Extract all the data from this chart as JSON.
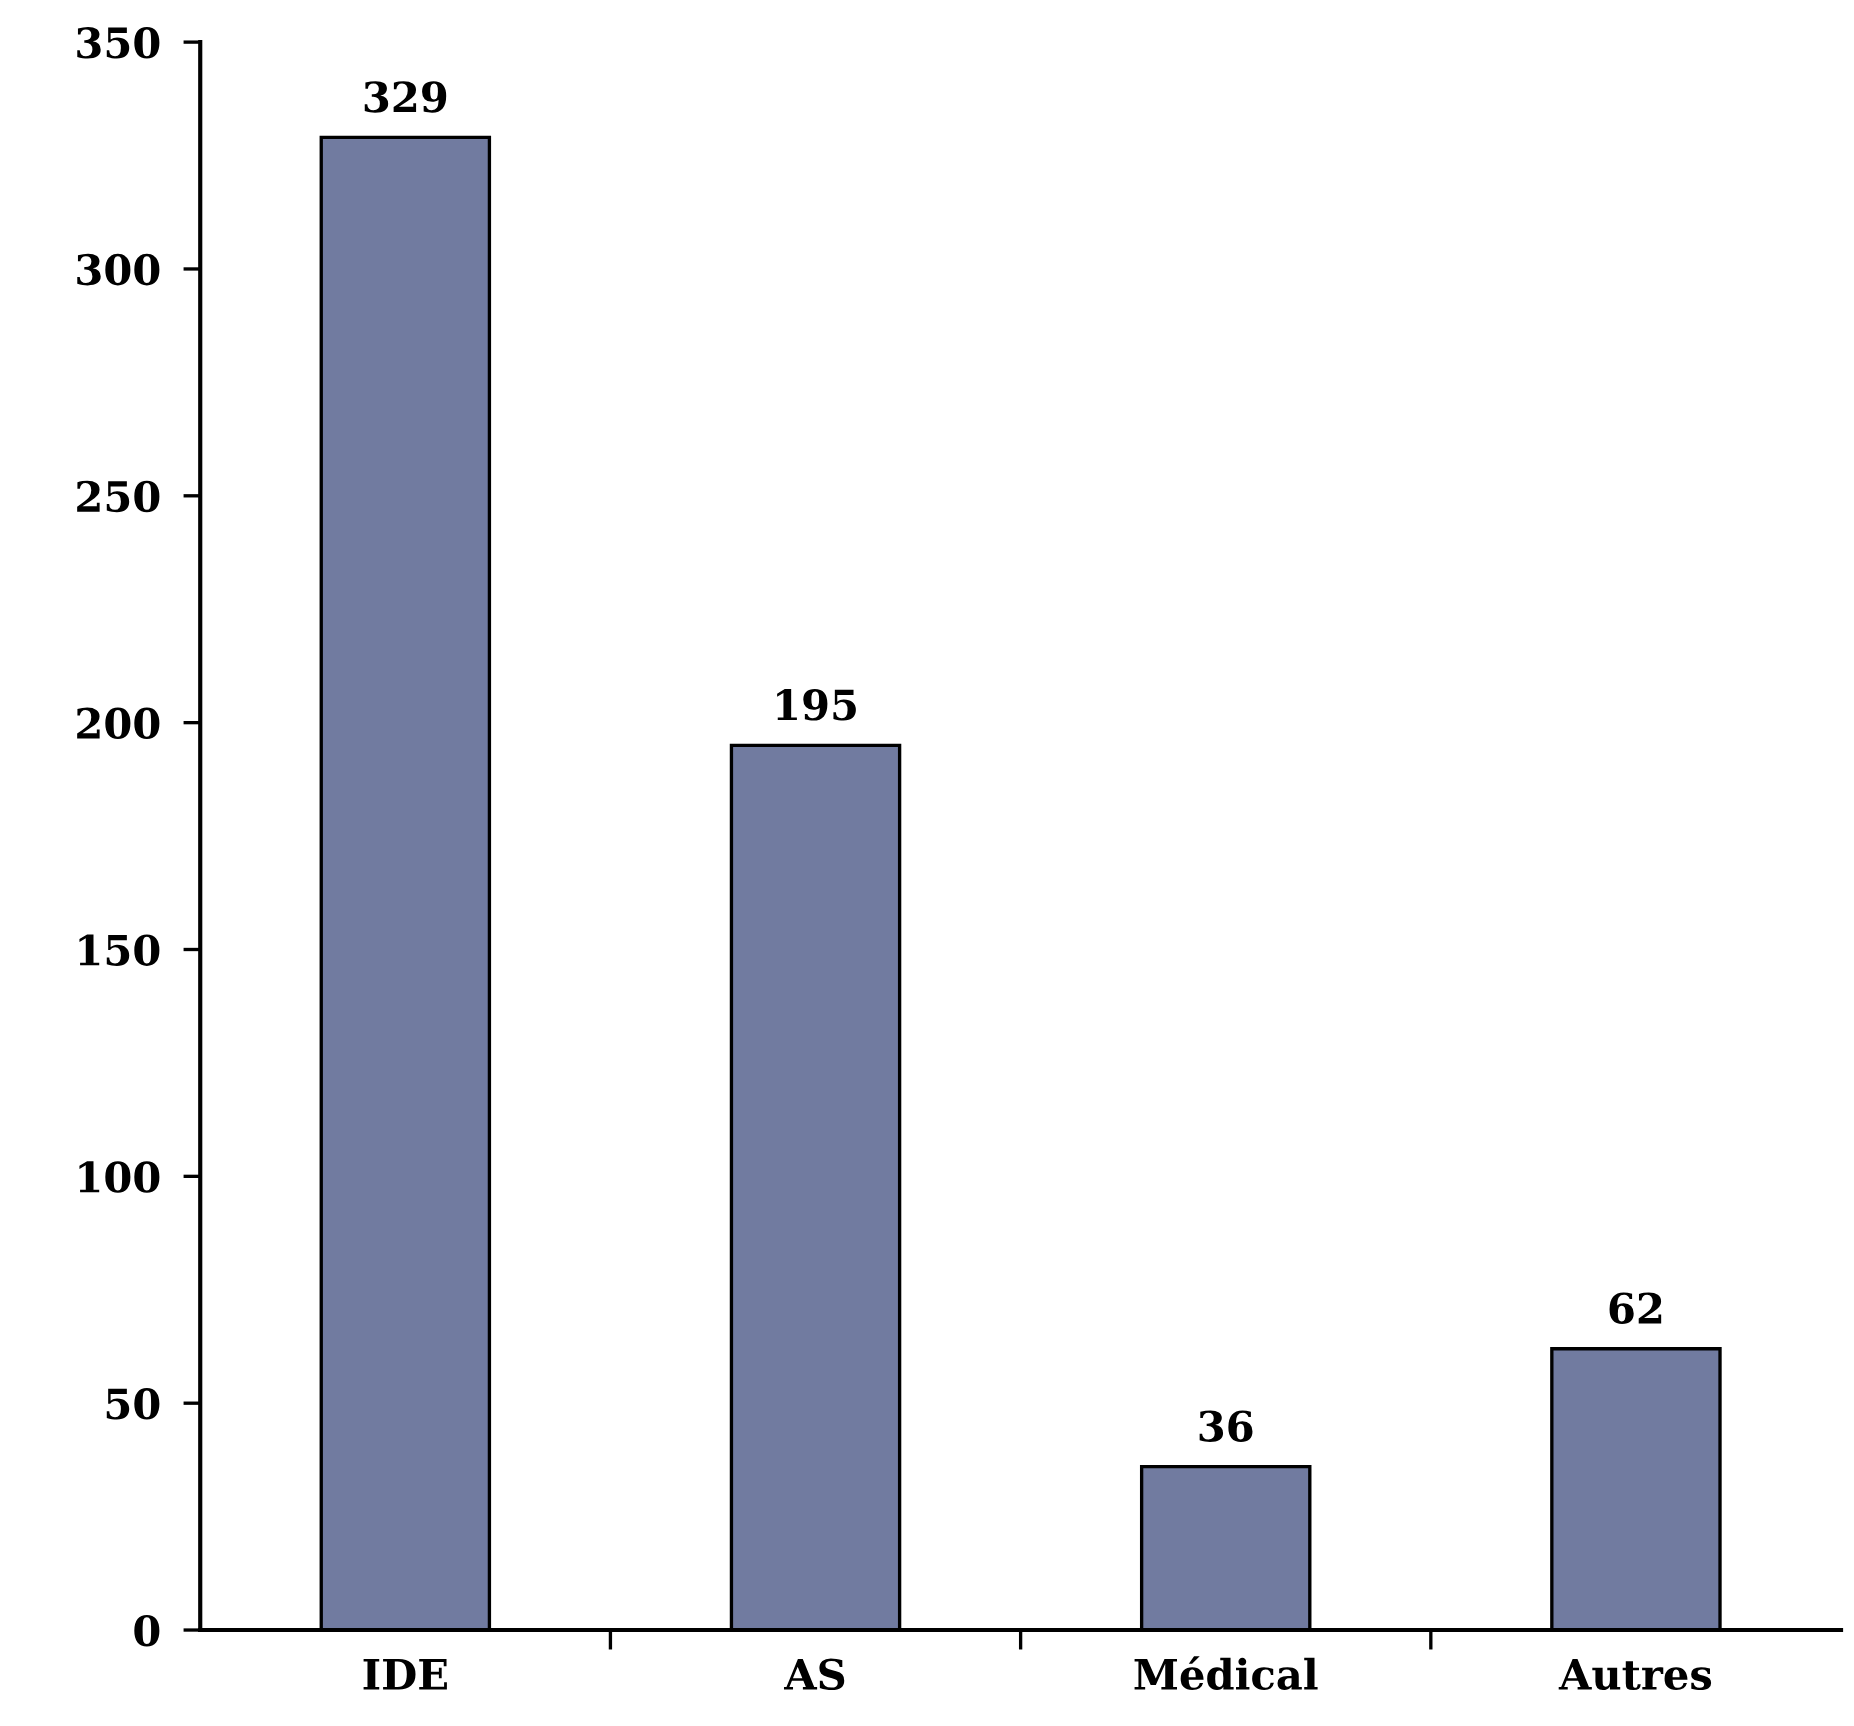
{
  "chart_data": {
    "type": "bar",
    "categories": [
      "IDE",
      "AS",
      "Médical",
      "Autres"
    ],
    "values": [
      329,
      195,
      36,
      62
    ],
    "color": "#717ba0",
    "ylim": [
      0,
      350
    ],
    "yticks": [
      0,
      50,
      100,
      150,
      200,
      250,
      300,
      350
    ],
    "data_labels": true,
    "grid": false,
    "legend": false
  }
}
